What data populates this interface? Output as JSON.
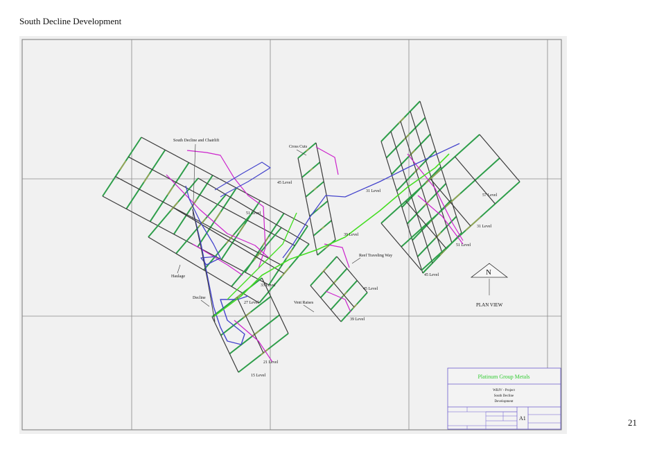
{
  "document": {
    "title": "South Decline Development",
    "page_number": "21"
  },
  "drawing": {
    "labels": {
      "south_decline": "South Decline and Chairlift",
      "cross_cuts": "Cross Cuts",
      "reef_traveling_way": "Reef Traveling Way",
      "haulage": "Haulage",
      "decline": "Decline",
      "vent_raises": "Vent Raises",
      "plan_view": "PLAN VIEW",
      "north": "N"
    },
    "levels": [
      {
        "id": "l45a",
        "text": "45 Level"
      },
      {
        "id": "l51a",
        "text": "51 Level"
      },
      {
        "id": "l33",
        "text": "33 Level"
      },
      {
        "id": "l27",
        "text": "27 Level"
      },
      {
        "id": "l21",
        "text": "21 Level"
      },
      {
        "id": "l15",
        "text": "15 Level"
      },
      {
        "id": "l31a",
        "text": "31 Level"
      },
      {
        "id": "l39a",
        "text": "39 Level"
      },
      {
        "id": "l57",
        "text": "57 Level"
      },
      {
        "id": "l31b",
        "text": "31 Level"
      },
      {
        "id": "l51b",
        "text": "51 Level"
      },
      {
        "id": "l45b",
        "text": "45 Level"
      },
      {
        "id": "l45c",
        "text": "45 Level"
      },
      {
        "id": "l39b",
        "text": "39 Level"
      }
    ],
    "title_block": {
      "company": "Platinum Group Metals",
      "project_line1": "WBJV - Project",
      "project_line2": "South Decline",
      "project_line3": "Development",
      "sheet_size": "A1"
    },
    "colors": {
      "strike_drive": "#2e9e4a",
      "dip_line": "#3a3a3a",
      "cross_cut": "#cc22cc",
      "decline": "#4444cc",
      "main_haulage": "#44dd22",
      "raise": "#b8a050",
      "company_text": "#33cc33",
      "title_block_border": "#6a5acd"
    }
  }
}
